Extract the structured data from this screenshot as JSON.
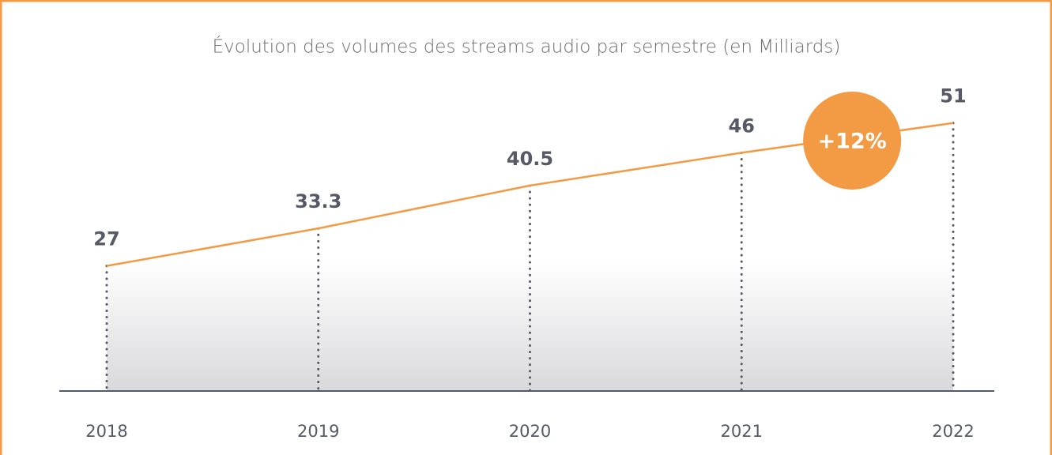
{
  "chart_data": {
    "type": "area",
    "title": "Évolution des volumes des streams audio par semestre (en Milliards)",
    "categories": [
      "2018",
      "2019",
      "2020",
      "2021",
      "2022"
    ],
    "values": [
      27,
      33.3,
      40.5,
      46,
      51
    ],
    "color": "#f39a45",
    "ylim": [
      6,
      56
    ],
    "annotation": "+12%",
    "annotation_color": "#f39a45"
  }
}
